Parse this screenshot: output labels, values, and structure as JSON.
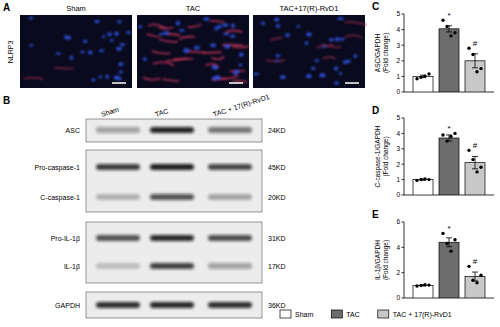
{
  "panel_a": {
    "label": "A",
    "stain": "NLRP3",
    "groups": [
      "Sham",
      "TAC",
      "TAC+17(R)-RvD1"
    ]
  },
  "panel_b": {
    "label": "B",
    "groups": [
      "Sham",
      "TAC",
      "TAC + 17(R)-RvD1"
    ],
    "rows": [
      {
        "protein": "ASC",
        "size": "24KD"
      },
      {
        "protein": "Pro-caspase-1",
        "size": "45KD"
      },
      {
        "protein": "C-caspase-1",
        "size": "20KD"
      },
      {
        "protein": "Pro-IL-1β",
        "size": "31KD"
      },
      {
        "protein": "IL-1β",
        "size": "17KD"
      },
      {
        "protein": "GAPDH",
        "size": "36KD"
      }
    ]
  },
  "chart_data": [
    {
      "type": "bar",
      "title": "C",
      "y_label": [
        "ASC/GAPDH",
        "(Fold change)"
      ],
      "categories": [
        null
      ],
      "ylim": [
        0,
        5
      ],
      "yticks": [
        0,
        1,
        2,
        3,
        4,
        5
      ],
      "series": [
        {
          "color": "#ffffff",
          "values": [
            1.0
          ],
          "errors": [
            0.08
          ],
          "points": [
            0.85,
            0.95,
            1.02,
            1.15
          ]
        },
        {
          "color": "#6d6d6d",
          "values": [
            4.05
          ],
          "errors": [
            0.2
          ],
          "points": [
            4.6,
            4.2,
            3.6,
            3.8
          ],
          "annotation": "*"
        },
        {
          "color": "#c8c8c8",
          "values": [
            2.0
          ],
          "errors": [
            0.45
          ],
          "points": [
            2.8,
            2.4,
            1.3,
            1.5
          ],
          "annotation": "#"
        }
      ]
    },
    {
      "type": "bar",
      "title": "D",
      "y_label": [
        "C-caspase-1/GAPDH",
        "(Fold change)"
      ],
      "categories": [
        null
      ],
      "ylim": [
        0,
        5
      ],
      "yticks": [
        0,
        1,
        2,
        3,
        4,
        5
      ],
      "series": [
        {
          "color": "#ffffff",
          "values": [
            1.0
          ],
          "errors": [
            0.05
          ],
          "points": [
            0.95,
            1.0,
            1.05,
            1.0
          ]
        },
        {
          "color": "#6d6d6d",
          "values": [
            3.7
          ],
          "errors": [
            0.2
          ],
          "points": [
            3.9,
            3.5,
            3.8,
            4.0
          ],
          "annotation": "*"
        },
        {
          "color": "#c8c8c8",
          "values": [
            2.1
          ],
          "errors": [
            0.4
          ],
          "points": [
            2.9,
            2.3,
            1.5,
            1.8
          ],
          "annotation": "#"
        }
      ]
    },
    {
      "type": "bar",
      "title": "E",
      "y_label": [
        "IL-1β/GAPDH",
        "(Fold change)"
      ],
      "categories": [
        null
      ],
      "ylim": [
        0,
        6
      ],
      "yticks": [
        0,
        2,
        4,
        6
      ],
      "legend": "bottom",
      "series": [
        {
          "name": "Sham",
          "color": "#ffffff",
          "values": [
            1.0
          ],
          "errors": [
            0.05
          ],
          "points": [
            0.95,
            1.0,
            1.05,
            1.02
          ]
        },
        {
          "name": "TAC",
          "color": "#6d6d6d",
          "values": [
            4.4
          ],
          "errors": [
            0.35
          ],
          "points": [
            5.1,
            4.3,
            3.7,
            4.6
          ],
          "annotation": "*"
        },
        {
          "name": "TAC + 17(R)-RvD1",
          "color": "#c8c8c8",
          "values": [
            1.7
          ],
          "errors": [
            0.35
          ],
          "points": [
            2.5,
            1.4,
            1.2,
            1.8
          ],
          "annotation": "#"
        }
      ]
    }
  ]
}
